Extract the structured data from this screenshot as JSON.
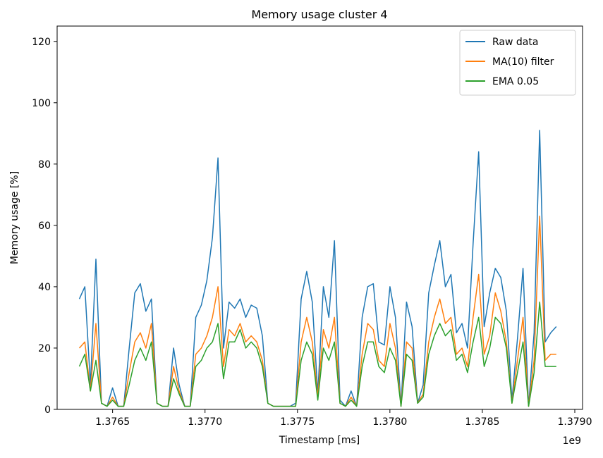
{
  "chart_data": {
    "type": "line",
    "title": "Memory usage cluster 4",
    "x_label": "Timestamp [ms]",
    "y_label": "Memory usage [%]",
    "x_offset_label": "1e9",
    "x": [
      1376320000,
      1376350000,
      1376380000,
      1376410000,
      1376440000,
      1376470000,
      1376500000,
      1376530000,
      1376560000,
      1376590000,
      1376620000,
      1376650000,
      1376680000,
      1376710000,
      1376740000,
      1376770000,
      1376800000,
      1376830000,
      1376860000,
      1376890000,
      1376920000,
      1376950000,
      1376980000,
      1377010000,
      1377040000,
      1377070000,
      1377100000,
      1377130000,
      1377160000,
      1377190000,
      1377220000,
      1377250000,
      1377280000,
      1377310000,
      1377340000,
      1377370000,
      1377400000,
      1377430000,
      1377460000,
      1377490000,
      1377520000,
      1377550000,
      1377580000,
      1377610000,
      1377640000,
      1377670000,
      1377700000,
      1377730000,
      1377760000,
      1377790000,
      1377820000,
      1377850000,
      1377880000,
      1377910000,
      1377940000,
      1377970000,
      1378000000,
      1378030000,
      1378060000,
      1378090000,
      1378120000,
      1378150000,
      1378180000,
      1378210000,
      1378240000,
      1378270000,
      1378300000,
      1378330000,
      1378360000,
      1378390000,
      1378420000,
      1378450000,
      1378480000,
      1378510000,
      1378540000,
      1378570000,
      1378600000,
      1378630000,
      1378660000,
      1378690000,
      1378720000,
      1378750000,
      1378780000,
      1378810000,
      1378840000,
      1378870000,
      1378900000
    ],
    "series": [
      {
        "name": "Raw data",
        "color": "#1f77b4",
        "values": [
          36,
          40,
          8,
          49,
          2,
          1,
          7,
          1,
          1,
          20,
          38,
          41,
          32,
          36,
          2,
          1,
          1,
          20,
          8,
          1,
          1,
          30,
          34,
          42,
          56,
          82,
          20,
          35,
          33,
          36,
          30,
          34,
          33,
          24,
          2,
          1,
          1,
          1,
          1,
          2,
          36,
          45,
          35,
          5,
          40,
          30,
          55,
          3,
          1,
          6,
          1,
          30,
          40,
          41,
          22,
          21,
          40,
          30,
          1,
          35,
          27,
          2,
          8,
          38,
          47,
          55,
          40,
          44,
          25,
          28,
          20,
          54,
          84,
          27,
          38,
          46,
          43,
          32,
          3,
          23,
          46,
          1,
          25,
          91,
          22,
          25,
          27
        ]
      },
      {
        "name": "MA(10) filter",
        "color": "#ff7f0e",
        "values": [
          20,
          22,
          6,
          28,
          2,
          1,
          4,
          1,
          1,
          12,
          22,
          25,
          20,
          28,
          2,
          1,
          1,
          14,
          6,
          1,
          1,
          18,
          20,
          24,
          30,
          40,
          14,
          26,
          24,
          28,
          22,
          24,
          22,
          16,
          2,
          1,
          1,
          1,
          1,
          1,
          22,
          30,
          22,
          4,
          26,
          20,
          30,
          2,
          1,
          4,
          1,
          18,
          28,
          26,
          16,
          14,
          28,
          20,
          1,
          22,
          20,
          2,
          5,
          22,
          30,
          36,
          28,
          30,
          18,
          20,
          14,
          30,
          44,
          18,
          24,
          38,
          32,
          22,
          2,
          16,
          30,
          1,
          16,
          63,
          16,
          18,
          18
        ]
      },
      {
        "name": "EMA 0.05",
        "color": "#2ca02c",
        "values": [
          14,
          18,
          6,
          16,
          2,
          1,
          3,
          1,
          1,
          8,
          16,
          20,
          16,
          22,
          2,
          1,
          1,
          10,
          5,
          1,
          1,
          14,
          16,
          20,
          22,
          28,
          10,
          22,
          22,
          26,
          20,
          22,
          20,
          14,
          2,
          1,
          1,
          1,
          1,
          1,
          16,
          22,
          18,
          3,
          20,
          16,
          22,
          2,
          1,
          3,
          1,
          14,
          22,
          22,
          14,
          12,
          20,
          16,
          1,
          18,
          16,
          2,
          4,
          18,
          24,
          28,
          24,
          26,
          16,
          18,
          12,
          22,
          30,
          14,
          20,
          30,
          28,
          20,
          2,
          12,
          22,
          1,
          12,
          35,
          14,
          14,
          14
        ]
      }
    ],
    "xlim": [
      1376200000,
      1379042000
    ],
    "ylim": [
      0,
      125
    ],
    "xticks": [
      {
        "value": 1376500000,
        "label": "1.3765"
      },
      {
        "value": 1377000000,
        "label": "1.3770"
      },
      {
        "value": 1377500000,
        "label": "1.3775"
      },
      {
        "value": 1378000000,
        "label": "1.3780"
      },
      {
        "value": 1378500000,
        "label": "1.3785"
      },
      {
        "value": 1379000000,
        "label": "1.3790"
      }
    ],
    "yticks": [
      0,
      20,
      40,
      60,
      80,
      100,
      120
    ],
    "legend": "upper right"
  }
}
